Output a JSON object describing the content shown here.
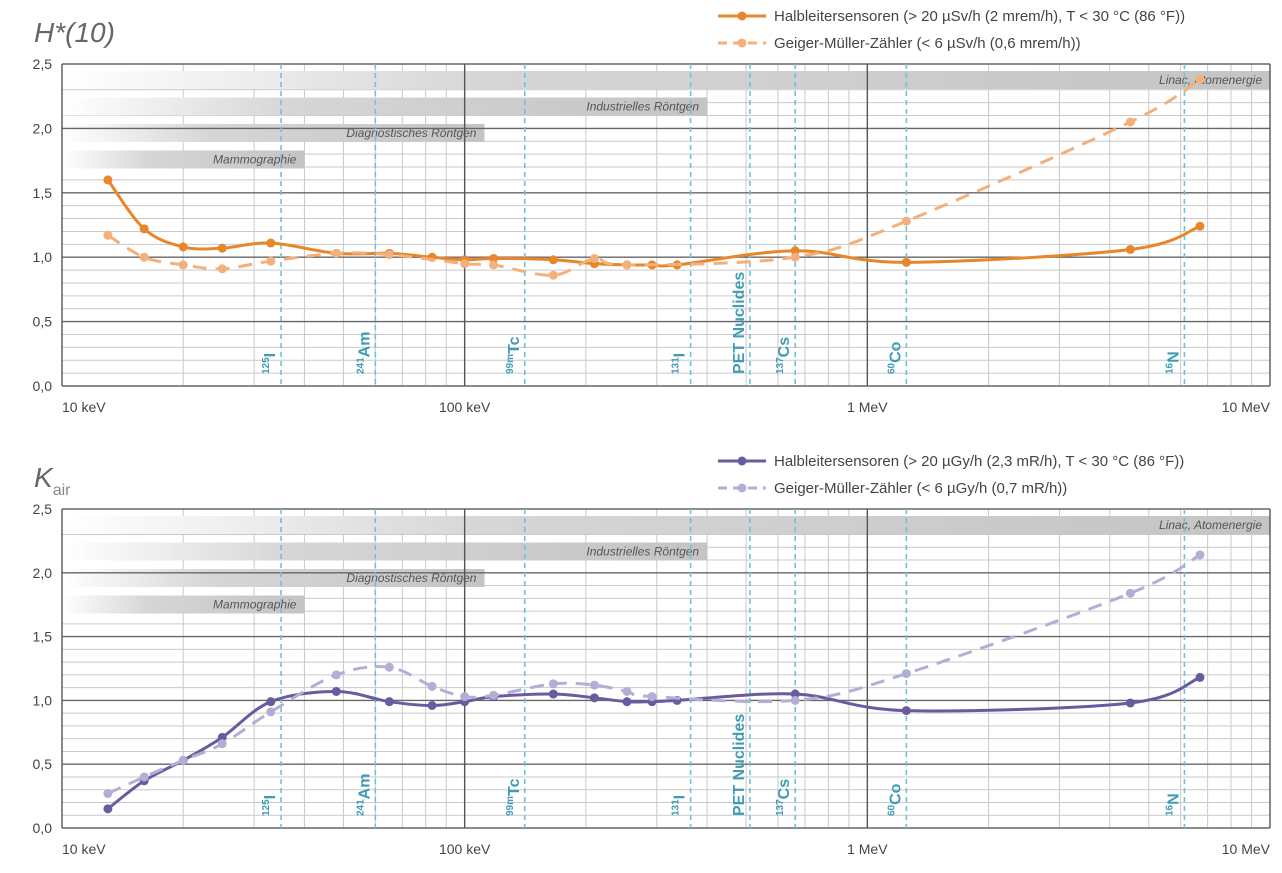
{
  "chart_data": [
    {
      "type": "line",
      "title": "H*(10)",
      "log_x": true,
      "grid": true,
      "xlim": [
        10,
        10000
      ],
      "xticks": [
        {
          "value": 10,
          "label": "10 keV"
        },
        {
          "value": 100,
          "label": "100 keV"
        },
        {
          "value": 1000,
          "label": "1 MeV"
        },
        {
          "value": 10000,
          "label": "10 MeV"
        }
      ],
      "xminor": [
        20,
        30,
        40,
        50,
        60,
        70,
        80,
        90,
        200,
        300,
        400,
        500,
        600,
        700,
        800,
        900,
        2000,
        3000,
        4000,
        5000,
        6000,
        7000,
        8000,
        9000
      ],
      "ylim": [
        0,
        2.5
      ],
      "yticks": [
        {
          "value": 0,
          "label": "0,0"
        },
        {
          "value": 0.5,
          "label": "0,5"
        },
        {
          "value": 1,
          "label": "1,0"
        },
        {
          "value": 1.5,
          "label": "1,5"
        },
        {
          "value": 2,
          "label": "2,0"
        },
        {
          "value": 2.5,
          "label": "2,5"
        }
      ],
      "yminor": [
        0.1,
        0.2,
        0.3,
        0.4,
        0.6,
        0.7,
        0.8,
        0.9,
        1.1,
        1.2,
        1.3,
        1.4,
        1.6,
        1.7,
        1.8,
        1.9,
        2.1,
        2.2,
        2.3,
        2.4
      ],
      "bands": [
        {
          "label": "Mammographie",
          "end": 40
        },
        {
          "label": "Diagnostisches Röntgen",
          "end": 112
        },
        {
          "label": "Industrielles Röntgen",
          "end": 400
        },
        {
          "label": "Linac, Atomenergie",
          "end": 10000
        }
      ],
      "nuclides": [
        {
          "mass": "125",
          "symbol": "I",
          "x": 35
        },
        {
          "mass": "241",
          "symbol": "Am",
          "x": 60
        },
        {
          "mass": "99m",
          "symbol": "Tc",
          "x": 141
        },
        {
          "mass": "131",
          "symbol": "I",
          "x": 364
        },
        {
          "symbol": "PET Nuclides",
          "x": 511
        },
        {
          "mass": "137",
          "symbol": "Cs",
          "x": 662
        },
        {
          "mass": "60",
          "symbol": "Co",
          "x": 1250
        },
        {
          "mass": "16",
          "symbol": "N",
          "x": 6130
        }
      ],
      "series": [
        {
          "name": "Halbleitersensoren (> 20 µSv/h (2 mrem/h), T < 30 °C (86 °F))",
          "color": "#e8862a",
          "dashed": false,
          "x": [
            13,
            16,
            20,
            25,
            33,
            48,
            65,
            83,
            100,
            118,
            166,
            210,
            253,
            292,
            337,
            662,
            1250,
            4500,
            6700
          ],
          "values": [
            1.6,
            1.22,
            1.08,
            1.07,
            1.11,
            1.03,
            1.03,
            1.0,
            0.98,
            0.99,
            0.98,
            0.95,
            0.94,
            0.94,
            0.94,
            1.05,
            0.96,
            1.06,
            1.24
          ]
        },
        {
          "name": "Geiger-Müller-Zähler (< 6 µSv/h (0,6 mrem/h))",
          "color": "#f3b07a",
          "dashed": true,
          "x": [
            13,
            16,
            20,
            25,
            33,
            48,
            65,
            100,
            118,
            166,
            210,
            253,
            662,
            1250,
            4500,
            6700
          ],
          "values": [
            1.17,
            1.0,
            0.94,
            0.91,
            0.97,
            1.03,
            1.02,
            0.95,
            0.94,
            0.86,
            0.99,
            0.94,
            1.0,
            1.28,
            2.05,
            2.38
          ]
        }
      ]
    },
    {
      "type": "line",
      "title": "K",
      "title_subscript": "air",
      "log_x": true,
      "grid": true,
      "xlim": [
        10,
        10000
      ],
      "xticks": [
        {
          "value": 10,
          "label": "10 keV"
        },
        {
          "value": 100,
          "label": "100 keV"
        },
        {
          "value": 1000,
          "label": "1 MeV"
        },
        {
          "value": 10000,
          "label": "10 MeV"
        }
      ],
      "xminor": [
        20,
        30,
        40,
        50,
        60,
        70,
        80,
        90,
        200,
        300,
        400,
        500,
        600,
        700,
        800,
        900,
        2000,
        3000,
        4000,
        5000,
        6000,
        7000,
        8000,
        9000
      ],
      "ylim": [
        0,
        2.5
      ],
      "yticks": [
        {
          "value": 0,
          "label": "0,0"
        },
        {
          "value": 0.5,
          "label": "0,5"
        },
        {
          "value": 1,
          "label": "1,0"
        },
        {
          "value": 1.5,
          "label": "1,5"
        },
        {
          "value": 2,
          "label": "2,0"
        },
        {
          "value": 2.5,
          "label": "2,5"
        }
      ],
      "yminor": [
        0.1,
        0.2,
        0.3,
        0.4,
        0.6,
        0.7,
        0.8,
        0.9,
        1.1,
        1.2,
        1.3,
        1.4,
        1.6,
        1.7,
        1.8,
        1.9,
        2.1,
        2.2,
        2.3,
        2.4
      ],
      "bands": [
        {
          "label": "Mammographie",
          "end": 40
        },
        {
          "label": "Diagnostisches Röntgen",
          "end": 112
        },
        {
          "label": "Industrielles Röntgen",
          "end": 400
        },
        {
          "label": "Linac, Atomenergie",
          "end": 10000
        }
      ],
      "nuclides": [
        {
          "mass": "125",
          "symbol": "I",
          "x": 35
        },
        {
          "mass": "241",
          "symbol": "Am",
          "x": 60
        },
        {
          "mass": "99m",
          "symbol": "Tc",
          "x": 141
        },
        {
          "mass": "131",
          "symbol": "I",
          "x": 364
        },
        {
          "symbol": "PET Nuclides",
          "x": 511
        },
        {
          "mass": "137",
          "symbol": "Cs",
          "x": 662
        },
        {
          "mass": "60",
          "symbol": "Co",
          "x": 1250
        },
        {
          "mass": "16",
          "symbol": "N",
          "x": 6130
        }
      ],
      "series": [
        {
          "name": "Halbleitersensoren (> 20 µGy/h (2,3 mR/h), T < 30 °C (86 °F))",
          "color": "#6b5b9e",
          "dashed": false,
          "x": [
            13,
            16,
            20,
            25,
            33,
            48,
            65,
            83,
            100,
            118,
            166,
            210,
            253,
            292,
            337,
            662,
            1250,
            4500,
            6700
          ],
          "values": [
            0.15,
            0.37,
            0.53,
            0.71,
            0.99,
            1.07,
            0.99,
            0.96,
            0.99,
            1.03,
            1.05,
            1.02,
            0.99,
            0.99,
            1.0,
            1.05,
            0.92,
            0.98,
            1.18
          ]
        },
        {
          "name": "Geiger-Müller-Zähler (< 6 µGy/h (0,7 mR/h))",
          "color": "#b4aed6",
          "dashed": true,
          "x": [
            13,
            16,
            20,
            25,
            33,
            48,
            65,
            83,
            100,
            118,
            166,
            210,
            253,
            292,
            662,
            1250,
            4500,
            6700
          ],
          "values": [
            0.27,
            0.4,
            0.53,
            0.66,
            0.91,
            1.2,
            1.26,
            1.11,
            1.03,
            1.04,
            1.13,
            1.12,
            1.07,
            1.03,
            1.0,
            1.21,
            1.84,
            2.14
          ]
        }
      ]
    }
  ]
}
